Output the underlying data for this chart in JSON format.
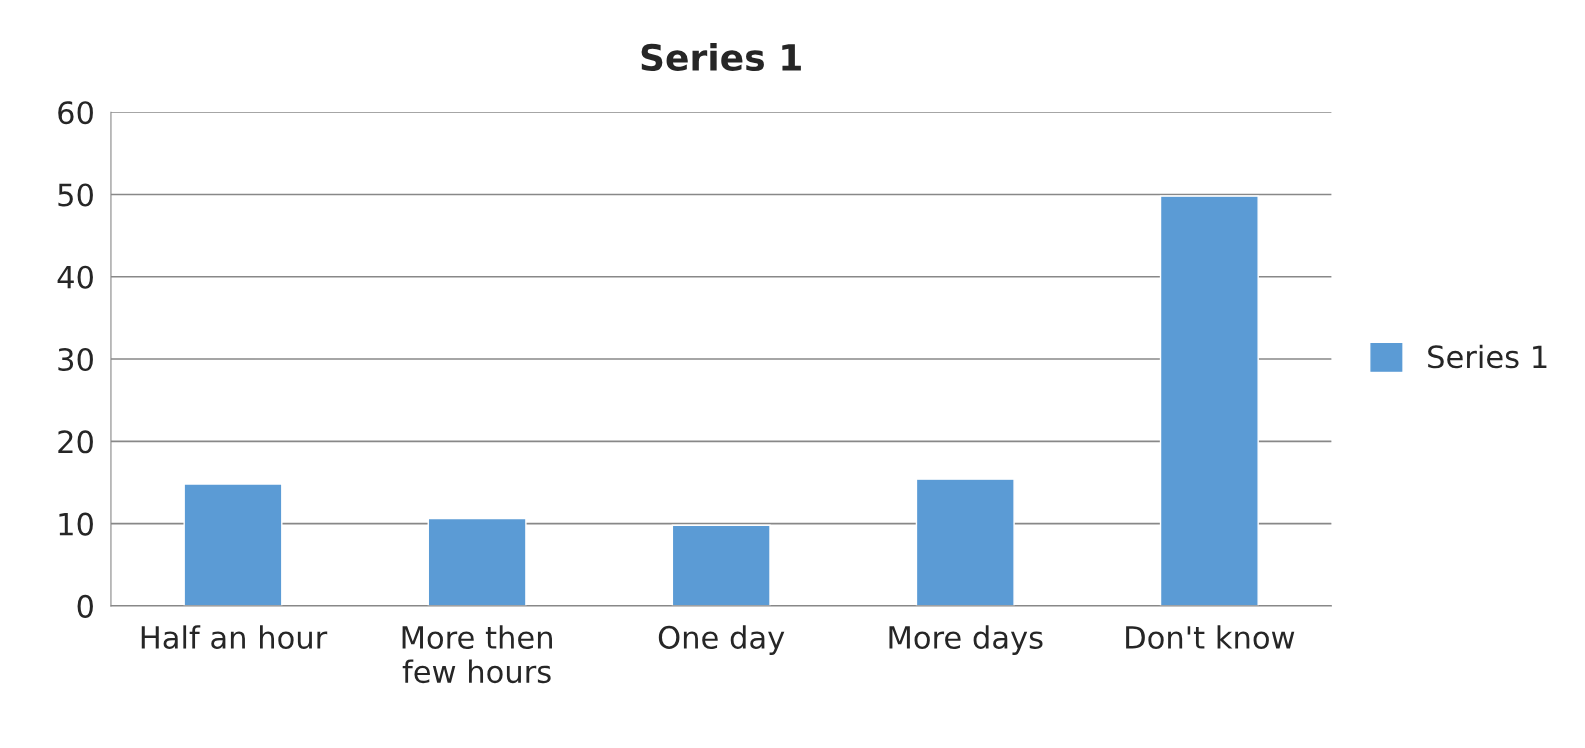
{
  "chart_data": {
    "type": "bar",
    "title": "Series 1",
    "categories": [
      "Half an hour",
      "More then\nfew hours",
      "One day",
      "More days",
      "Don't know"
    ],
    "series": [
      {
        "name": "Series 1",
        "color": "#5b9bd5",
        "values": [
          14.8,
          10.6,
          9.8,
          15.4,
          49.8
        ]
      }
    ],
    "ylim": [
      0,
      60
    ],
    "yticks": [
      0,
      10,
      20,
      30,
      40,
      50,
      60
    ],
    "grid": "y",
    "legend": "right"
  }
}
